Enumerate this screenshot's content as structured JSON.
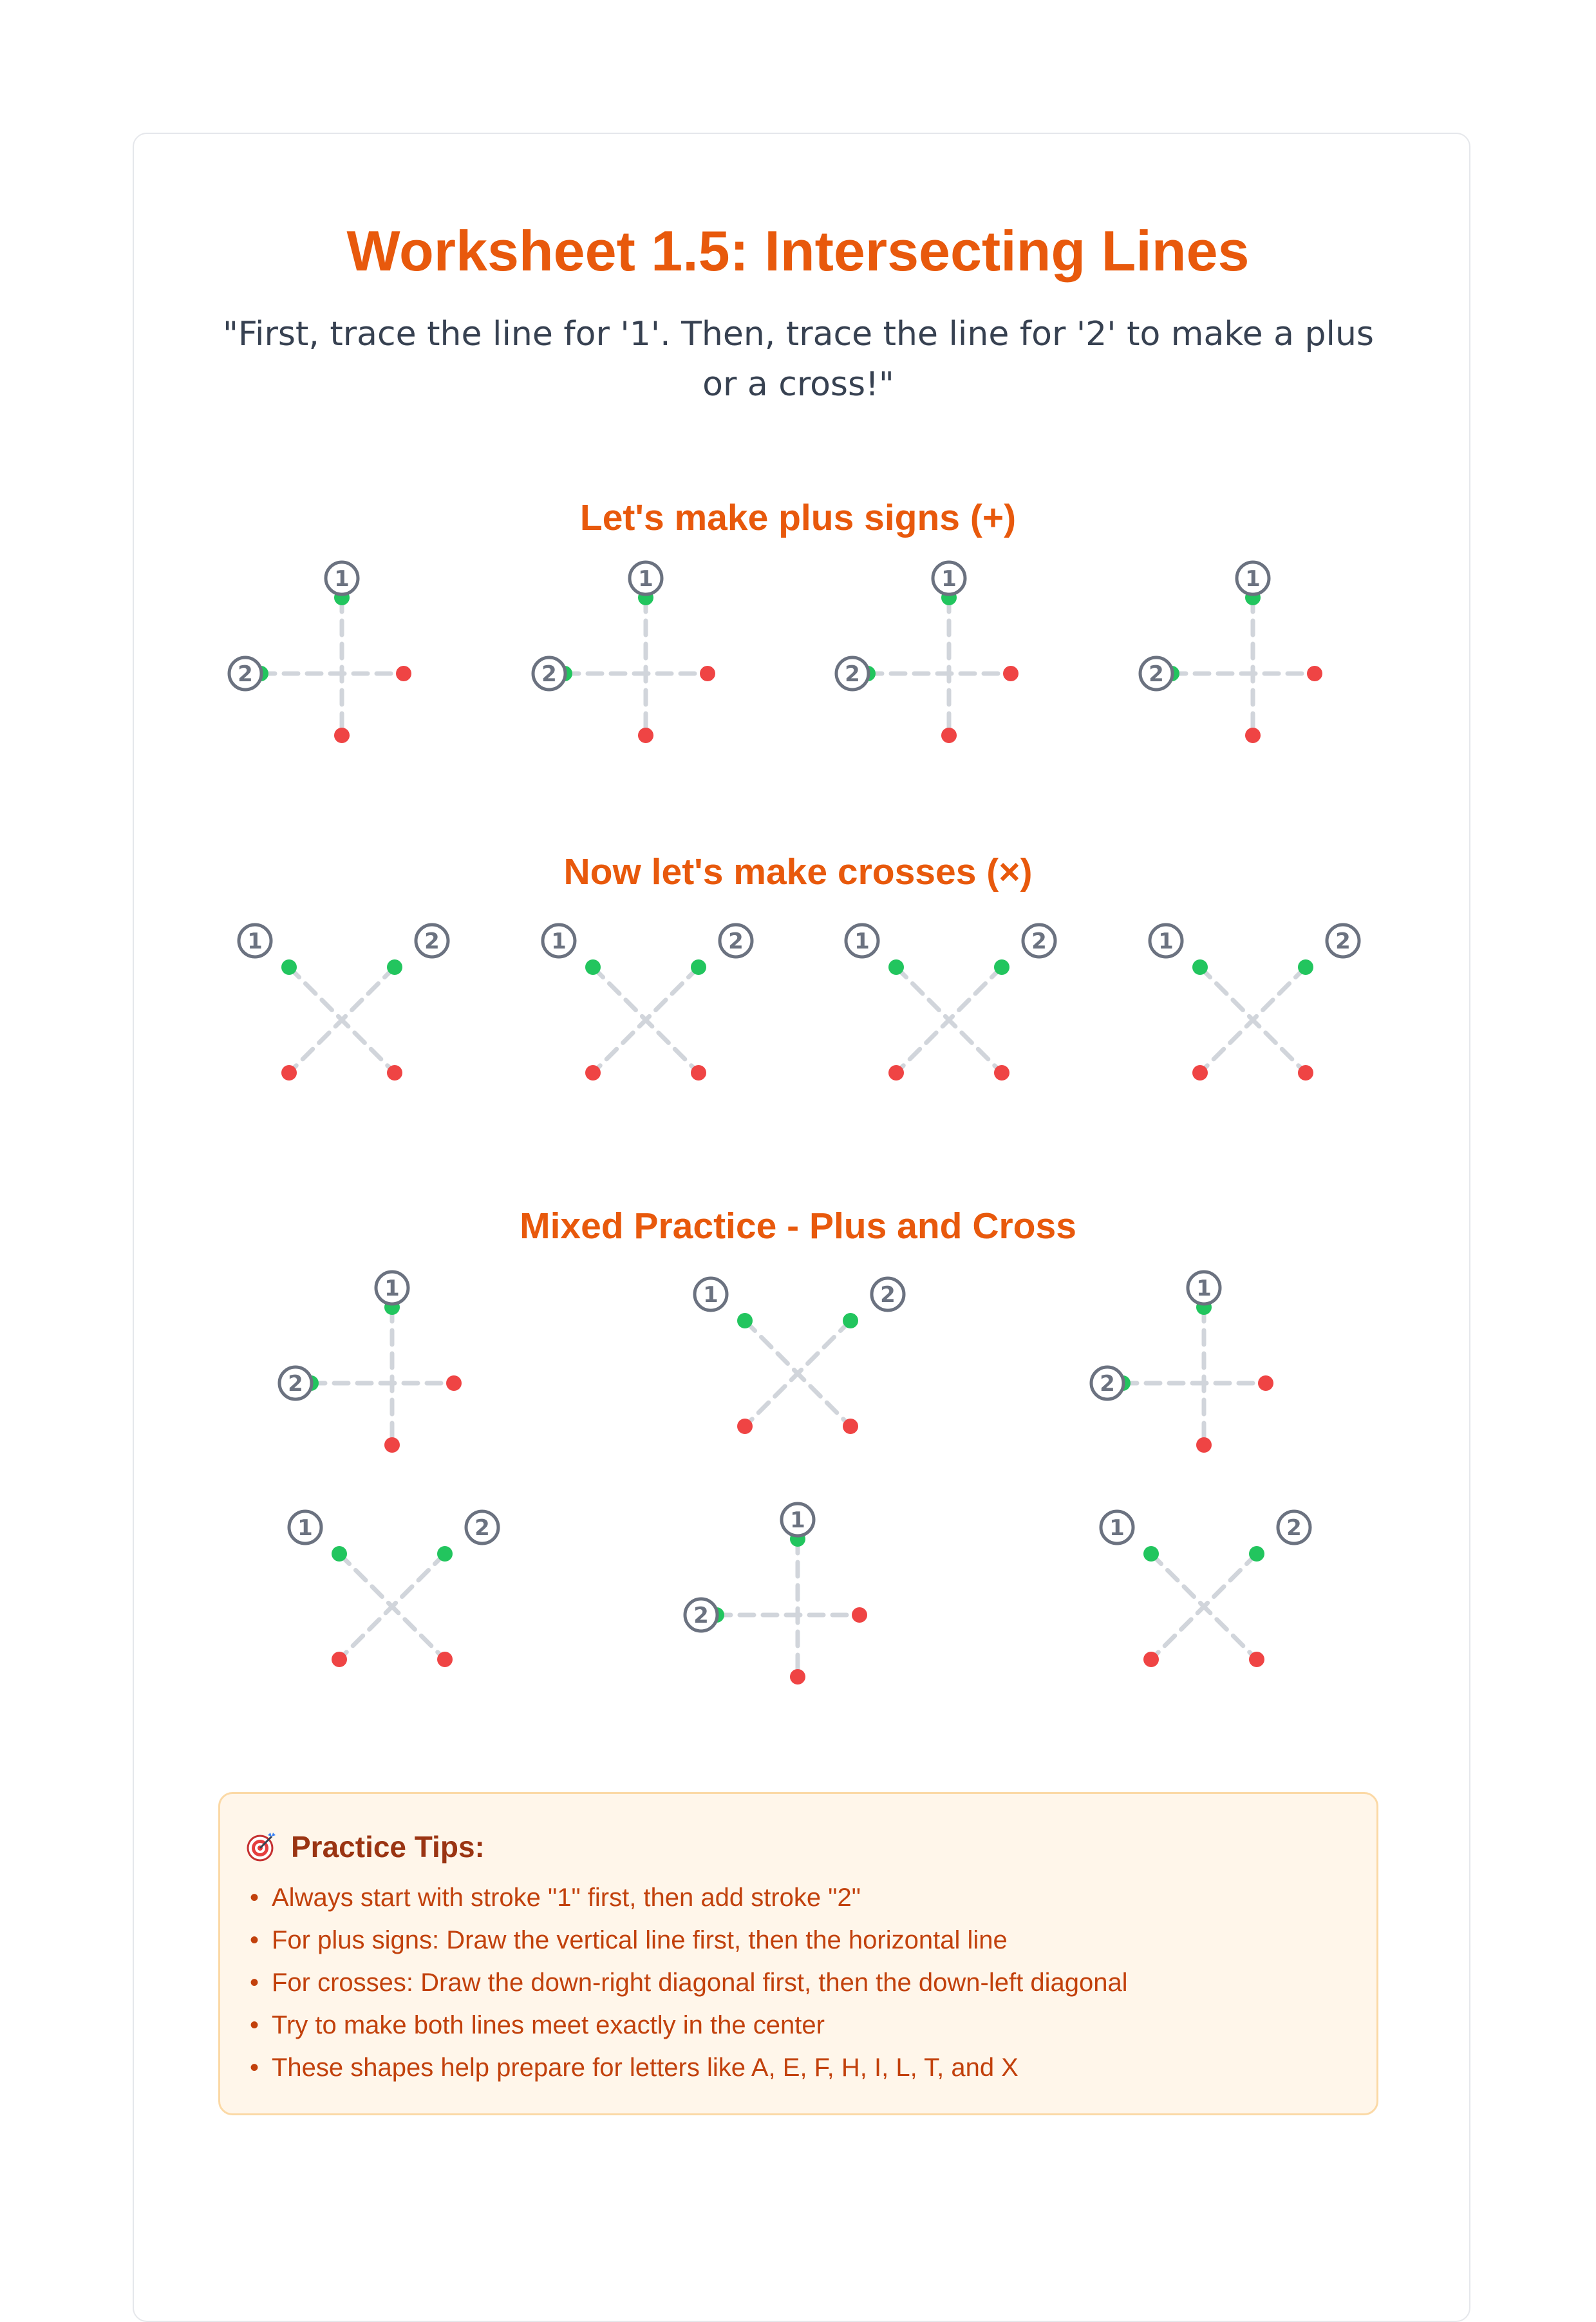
{
  "worksheet": {
    "title": "Worksheet 1.5: Intersecting Lines",
    "instruction": "\"First, trace the line for '1'. Then, trace the line for '2' to make a plus or a cross!\""
  },
  "sections": [
    {
      "heading": "Let's make plus signs (+)"
    },
    {
      "heading": "Now let's make crosses (×)"
    },
    {
      "heading": "Mixed Practice - Plus and Cross"
    }
  ],
  "stroke_labels": {
    "first": "1",
    "second": "2"
  },
  "figures": {
    "plus_row": [
      "plus",
      "plus",
      "plus",
      "plus"
    ],
    "cross_row": [
      "cross",
      "cross",
      "cross",
      "cross"
    ],
    "mixed_row_1": [
      "plus",
      "cross",
      "plus"
    ],
    "mixed_row_2": [
      "cross",
      "plus",
      "cross"
    ]
  },
  "colors": {
    "accent": "#e8590c",
    "start_dot": "#22c55e",
    "end_dot": "#ef4444",
    "guide_line": "#d1d5db",
    "badge": "#6b7280"
  },
  "tips": {
    "icon": "target-icon",
    "title": "Practice Tips:",
    "bullet": "•",
    "items": [
      "Always start with stroke \"1\" first, then add stroke \"2\"",
      "For plus signs: Draw the vertical line first, then the horizontal line",
      "For crosses: Draw the down-right diagonal first, then the down-left diagonal",
      "Try to make both lines meet exactly in the center",
      "These shapes help prepare for letters like A, E, F, H, I, L, T, and X"
    ]
  }
}
